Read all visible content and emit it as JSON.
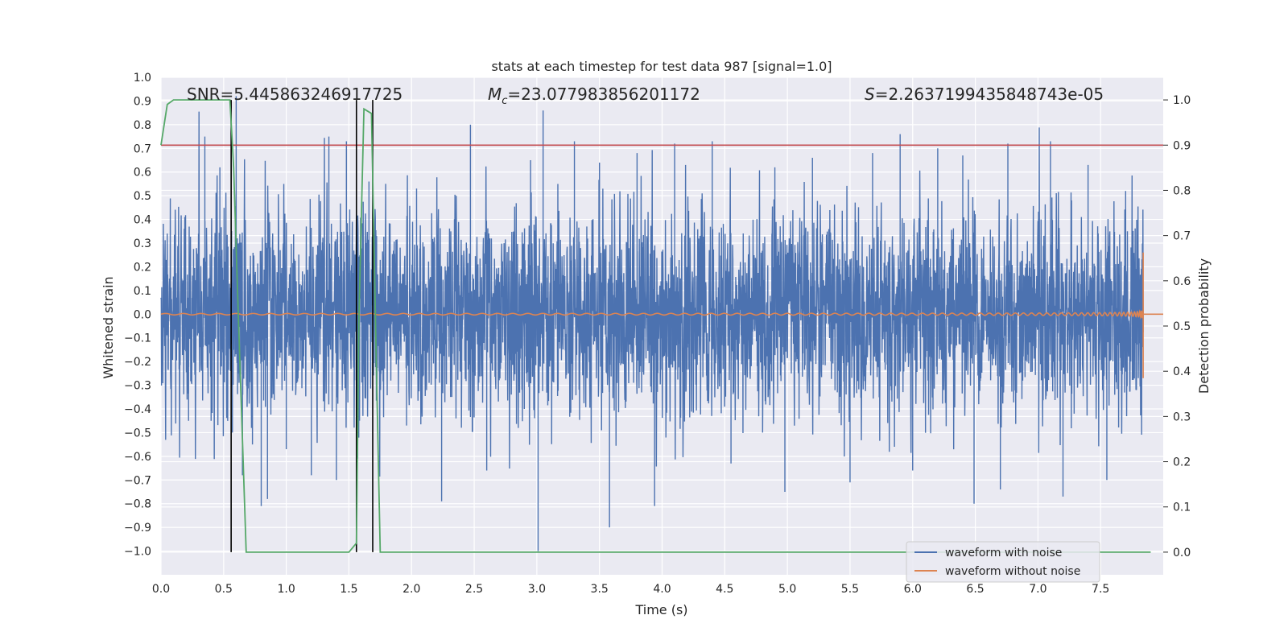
{
  "chart_data": {
    "type": "line",
    "title": "stats at each timestep for test data 987 [signal=1.0]",
    "xlabel": "Time (s)",
    "ylabel": "Whitened strain",
    "y2label": "Detection probability",
    "xlim": [
      0,
      8.0
    ],
    "ylim": [
      -1.1,
      1.0
    ],
    "y2lim": [
      -0.05,
      1.05
    ],
    "grid": true,
    "x_ticks": [
      0.0,
      0.5,
      1.0,
      1.5,
      2.0,
      2.5,
      3.0,
      3.5,
      4.0,
      4.5,
      5.0,
      5.5,
      6.0,
      6.5,
      7.0,
      7.5
    ],
    "x_tick_labels": [
      "0.0",
      "0.5",
      "1.0",
      "1.5",
      "2.0",
      "2.5",
      "3.0",
      "3.5",
      "4.0",
      "4.5",
      "5.0",
      "5.5",
      "6.0",
      "6.5",
      "7.0",
      "7.5"
    ],
    "y_ticks": [
      1.0,
      0.9,
      0.8,
      0.7,
      0.6,
      0.5,
      0.4,
      0.3,
      0.2,
      0.1,
      0.0,
      -0.1,
      -0.2,
      -0.3,
      -0.4,
      -0.5,
      -0.6,
      -0.7,
      -0.8,
      -0.9,
      -1.0
    ],
    "y_tick_labels": [
      "1.0",
      "0.9",
      "0.8",
      "0.7",
      "0.6",
      "0.5",
      "0.4",
      "0.3",
      "0.2",
      "0.1",
      "0.0",
      "−0.1",
      "−0.2",
      "−0.3",
      "−0.4",
      "−0.5",
      "−0.6",
      "−0.7",
      "−0.8",
      "−0.9",
      "−1.0"
    ],
    "y2_ticks": [
      1.0,
      0.9,
      0.8,
      0.7,
      0.6,
      0.5,
      0.4,
      0.3,
      0.2,
      0.1,
      0.0
    ],
    "y2_tick_labels": [
      "1.0",
      "0.9",
      "0.8",
      "0.7",
      "0.6",
      "0.5",
      "0.4",
      "0.3",
      "0.2",
      "0.1",
      "0.0"
    ],
    "annotations": {
      "snr": "SNR=5.445863246917725",
      "mc_symbol": "M",
      "mc_sub": "c",
      "mc_value": "=23.077983856201172",
      "s_symbol": "S",
      "s_value": "=2.2637199435848743e-05"
    },
    "series": [
      {
        "name": "waveform with noise",
        "color": "#4c72b0",
        "axis": "left",
        "t_max": 7.84,
        "typical_amplitude": 0.3,
        "peaks": [
          [
            0.19,
            0.41
          ],
          [
            0.22,
            -0.45
          ],
          [
            0.35,
            0.75
          ],
          [
            0.4,
            -0.45
          ],
          [
            0.47,
            0.62
          ],
          [
            0.6,
            0.92
          ],
          [
            0.57,
            -0.5
          ],
          [
            0.65,
            -0.68
          ],
          [
            0.73,
            -0.55
          ],
          [
            0.8,
            -0.81
          ],
          [
            0.85,
            -0.78
          ],
          [
            1.0,
            -0.57
          ],
          [
            1.2,
            -0.68
          ],
          [
            1.34,
            0.75
          ],
          [
            1.4,
            -0.7
          ],
          [
            1.48,
            0.73
          ],
          [
            1.57,
            -0.61
          ],
          [
            1.66,
            0.56
          ],
          [
            1.96,
            -0.47
          ],
          [
            2.04,
            0.53
          ],
          [
            2.24,
            -0.79
          ],
          [
            2.47,
            0.8
          ],
          [
            2.6,
            -0.66
          ],
          [
            2.9,
            -0.4
          ],
          [
            2.95,
            0.65
          ],
          [
            3.01,
            -1.0
          ],
          [
            3.05,
            0.86
          ],
          [
            3.3,
            0.73
          ],
          [
            3.5,
            0.64
          ],
          [
            3.58,
            -0.9
          ],
          [
            3.8,
            0.68
          ],
          [
            3.94,
            -0.81
          ],
          [
            4.1,
            0.72
          ],
          [
            4.4,
            0.73
          ],
          [
            4.55,
            -0.63
          ],
          [
            4.9,
            0.62
          ],
          [
            4.98,
            -0.75
          ],
          [
            5.2,
            0.66
          ],
          [
            5.5,
            -0.71
          ],
          [
            5.68,
            0.68
          ],
          [
            5.9,
            0.76
          ],
          [
            6.0,
            -0.66
          ],
          [
            6.2,
            0.7
          ],
          [
            6.4,
            0.67
          ],
          [
            6.49,
            -0.8
          ],
          [
            6.7,
            -0.74
          ],
          [
            6.76,
            0.72
          ],
          [
            7.1,
            0.73
          ],
          [
            7.2,
            -0.77
          ],
          [
            7.4,
            0.63
          ],
          [
            7.55,
            -0.7
          ],
          [
            7.7,
            0.52
          ]
        ]
      },
      {
        "name": "waveform without noise",
        "color": "#dd8452",
        "axis": "left",
        "t_start": 0.0,
        "t_merger": 7.84,
        "start_freq": 7,
        "end_freq": 120,
        "amp_min": 0.003,
        "amp_max": 0.26,
        "amp_min_merger": -0.27
      },
      {
        "name": "detection probability",
        "color": "#55a868",
        "axis": "right",
        "x": [
          0.0,
          0.05,
          0.1,
          0.15,
          0.2,
          0.3,
          0.4,
          0.5,
          0.55,
          0.58,
          0.62,
          0.68,
          0.8,
          1.0,
          1.2,
          1.4,
          1.5,
          1.56,
          1.58,
          1.62,
          1.68,
          1.72,
          1.75,
          1.8,
          2.5,
          4.0,
          6.0,
          7.9
        ],
        "y": [
          0.9,
          0.99,
          1.0,
          1.0,
          1.0,
          1.0,
          1.0,
          1.0,
          1.0,
          0.85,
          0.5,
          0.0,
          0.0,
          0.0,
          0.0,
          0.0,
          0.0,
          0.02,
          0.52,
          0.98,
          0.97,
          0.4,
          0.0,
          0.0,
          0.0,
          0.0,
          0.0,
          0.0
        ]
      }
    ],
    "threshold": {
      "value": 0.9,
      "axis": "right",
      "color": "#c44e52"
    },
    "event_lines": {
      "x": [
        0.56,
        1.56,
        1.69
      ],
      "color": "#000000",
      "y_top_right": 1.0,
      "y_bottom_right": 0.0
    },
    "legend": {
      "position": "bottom-right",
      "entries": [
        {
          "label": "waveform with noise",
          "color": "#4c72b0"
        },
        {
          "label": "waveform without noise",
          "color": "#dd8452"
        }
      ]
    },
    "background_color": "#eaeaf2"
  }
}
